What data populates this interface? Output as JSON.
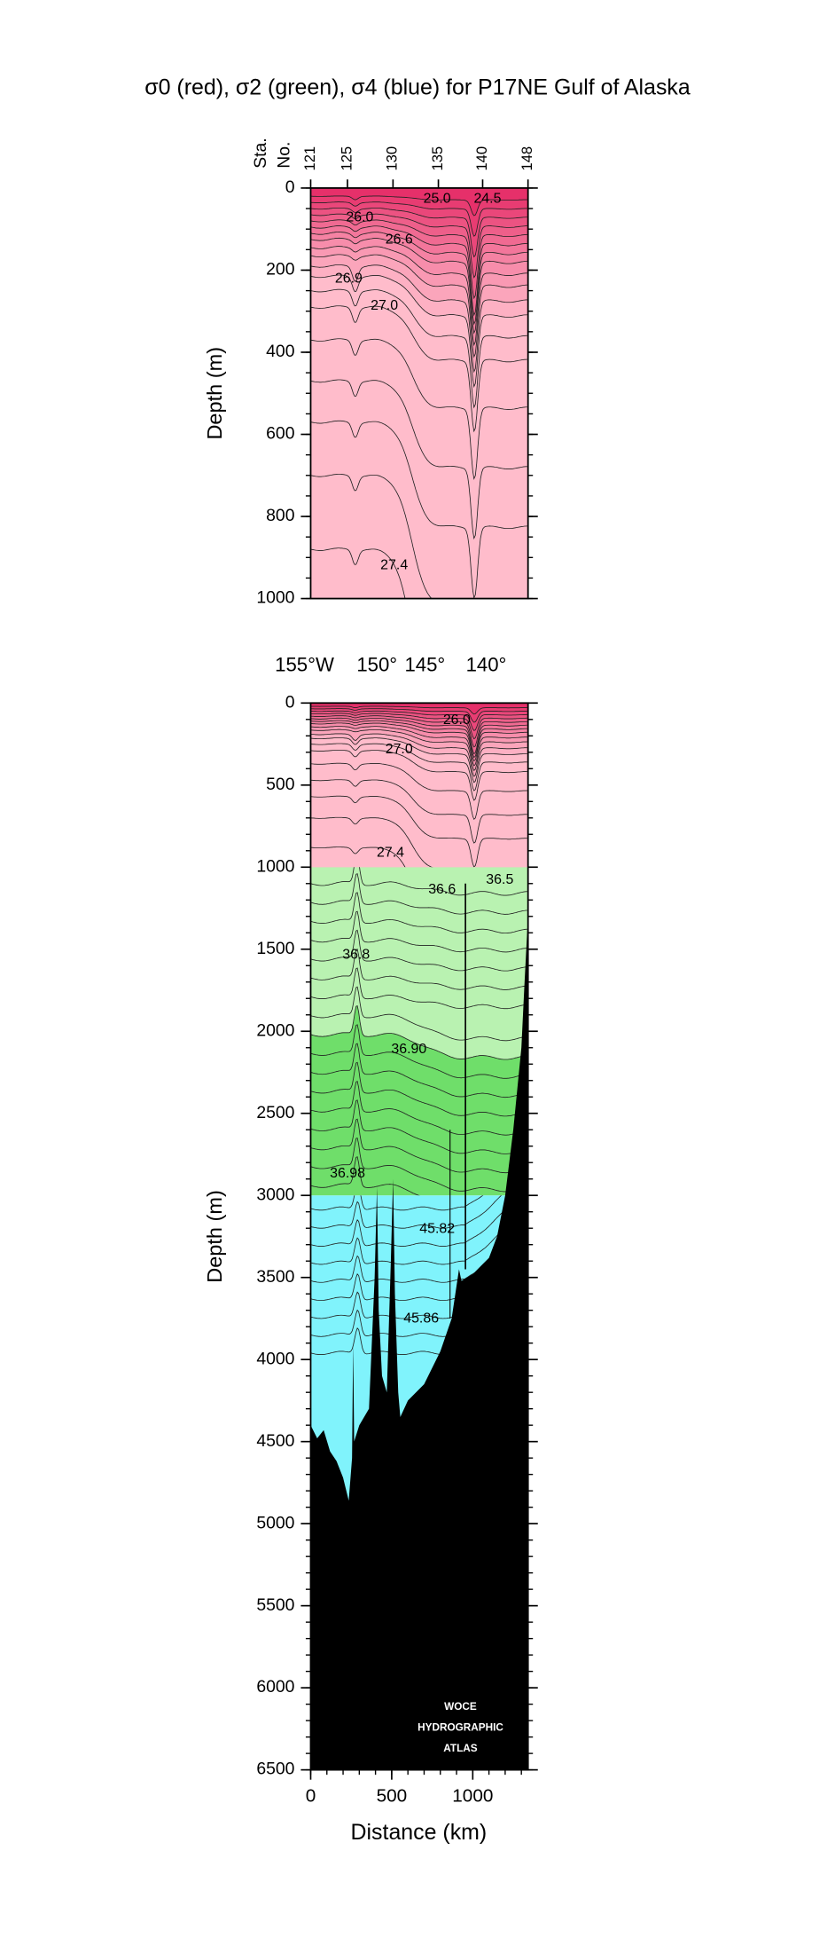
{
  "chart_data": [
    {
      "type": "contour",
      "title": "σ0 (red), σ2 (green), σ4 (blue) for P17NE Gulf of Alaska",
      "station_axis_label": [
        "Sta.",
        "No."
      ],
      "station_ticks": [
        {
          "value": 0,
          "label": "121"
        },
        {
          "value": 227,
          "label": "125"
        },
        {
          "value": 508,
          "label": "130"
        },
        {
          "value": 788,
          "label": "135"
        },
        {
          "value": 1061,
          "label": "140"
        },
        {
          "value": 1341,
          "label": "148"
        }
      ],
      "ylabel": "Depth (m)",
      "xlim": [
        0,
        1341
      ],
      "ylim": [
        0,
        1000
      ],
      "yticks": [
        0,
        200,
        400,
        600,
        800,
        1000
      ],
      "contour_labels": [
        "25.0",
        "24.5",
        "26.0",
        "26.6",
        "26.9",
        "27.0",
        "27.4"
      ]
    },
    {
      "type": "contour",
      "longitude_ticks": [
        {
          "value": -38,
          "label": "155°W"
        },
        {
          "value": 409,
          "label": "150°"
        },
        {
          "value": 705,
          "label": "145°"
        },
        {
          "value": 1083,
          "label": "140°"
        }
      ],
      "xlabel": "Distance (km)",
      "ylabel": "Depth (m)",
      "xlim": [
        0,
        1341
      ],
      "xticks": [
        0,
        500,
        1000
      ],
      "ylim": [
        0,
        6500
      ],
      "yticks": [
        0,
        500,
        1000,
        1500,
        2000,
        2500,
        3000,
        3500,
        4000,
        4500,
        5000,
        5500,
        6000,
        6500
      ],
      "contour_labels": [
        "26.0",
        "27.0",
        "27.4",
        "36.6",
        "36.5",
        "36.8",
        "36.90",
        "36.98",
        "45.82",
        "45.86"
      ],
      "logo": [
        "WOCE",
        "HYDROGRAPHIC",
        "ATLAS"
      ]
    }
  ]
}
